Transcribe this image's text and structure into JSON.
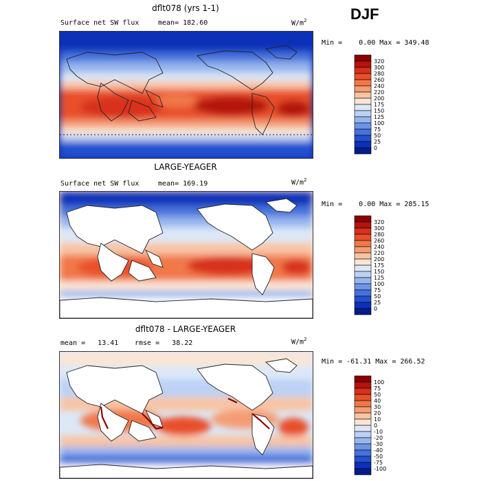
{
  "season": "DJF",
  "chart_data": [
    {
      "type": "heatmap",
      "title": "dflt078 (yrs 1-1)",
      "left_label": "Surface net SW flux",
      "stat_label": "mean= 182.60",
      "units": "W/m",
      "units_sup": "2",
      "min_max": "Min =    0.00 Max = 349.48",
      "min": 0.0,
      "max": 349.48,
      "mean": 182.6,
      "colorbar": {
        "levels": [
          "320",
          "300",
          "280",
          "260",
          "240",
          "220",
          "200",
          "175",
          "150",
          "125",
          "100",
          "75",
          "50",
          "25",
          "0"
        ],
        "colors": [
          "#8b0000",
          "#b4140c",
          "#d8301c",
          "#e8502c",
          "#f07848",
          "#f49c74",
          "#f8c4a4",
          "#fbe6d6",
          "#dce8f8",
          "#bcd2f4",
          "#96b6ee",
          "#6e94e6",
          "#4672dc",
          "#2250d0",
          "#0c30b8",
          "#001c8c"
        ]
      }
    },
    {
      "type": "heatmap",
      "title": "LARGE-YEAGER",
      "left_label": "Surface net SW flux",
      "stat_label": "mean= 169.19",
      "units": "W/m",
      "units_sup": "2",
      "min_max": "Min =    0.00 Max = 285.15",
      "min": 0.0,
      "max": 285.15,
      "mean": 169.19,
      "colorbar": {
        "levels": [
          "320",
          "300",
          "280",
          "260",
          "240",
          "220",
          "200",
          "175",
          "150",
          "125",
          "100",
          "75",
          "50",
          "25",
          "0"
        ],
        "colors": [
          "#8b0000",
          "#b4140c",
          "#d8301c",
          "#e8502c",
          "#f07848",
          "#f49c74",
          "#f8c4a4",
          "#fbe6d6",
          "#dce8f8",
          "#bcd2f4",
          "#96b6ee",
          "#6e94e6",
          "#4672dc",
          "#2250d0",
          "#0c30b8",
          "#001c8c"
        ]
      }
    },
    {
      "type": "heatmap",
      "title": "dflt078 - LARGE-YEAGER",
      "left_label": "mean =   13.41",
      "stat_label": "rmse =   38.22",
      "units": "W/m",
      "units_sup": "2",
      "min_max": "Min = -61.31 Max = 266.52",
      "min": -61.31,
      "max": 266.52,
      "mean": 13.41,
      "rmse": 38.22,
      "colorbar": {
        "levels": [
          "100",
          "75",
          "50",
          "40",
          "30",
          "20",
          "10",
          "0",
          "-10",
          "-20",
          "-30",
          "-40",
          "-50",
          "-75",
          "-100"
        ],
        "colors": [
          "#8b0000",
          "#b4140c",
          "#d8301c",
          "#e8502c",
          "#f07848",
          "#f49c74",
          "#f8c4a4",
          "#fbe6d6",
          "#dce8f8",
          "#bcd2f4",
          "#96b6ee",
          "#6e94e6",
          "#4672dc",
          "#2250d0",
          "#0c30b8",
          "#001c8c"
        ]
      }
    }
  ]
}
